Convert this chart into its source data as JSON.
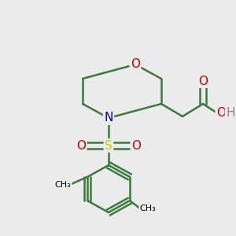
{
  "bg_color": "#ebebeb",
  "bond_color": "#3a7a3a",
  "bond_width": 1.8,
  "atom_colors": {
    "O": "#cc0000",
    "N": "#0000cc",
    "S": "#cccc00",
    "C_black": "#000000",
    "H": "#888888"
  },
  "font_size": 11,
  "font_size_small": 9
}
